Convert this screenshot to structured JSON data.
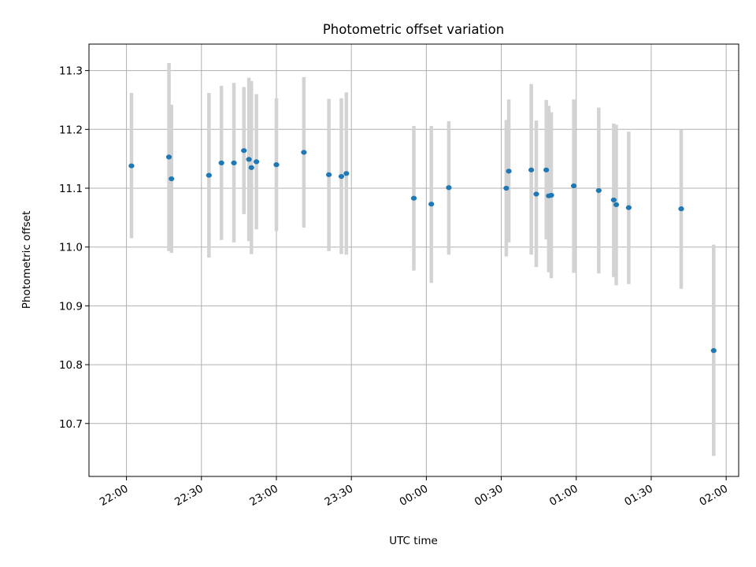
{
  "chart_data": {
    "type": "scatter",
    "title": "Photometric offset variation",
    "xlabel": "UTC time",
    "ylabel": "Photometric offset",
    "x_unit": "UTC time (HH:MM)",
    "xlim": [
      "21:45",
      "02:05"
    ],
    "ylim": [
      10.61,
      11.345
    ],
    "grid": true,
    "error_bar_color": "#d3d3d3",
    "point_color": "#1f77b4",
    "x_ticks": [
      "22:00",
      "22:30",
      "23:00",
      "23:30",
      "00:00",
      "00:30",
      "01:00",
      "01:30",
      "02:00"
    ],
    "y_ticks": [
      "10.7",
      "10.8",
      "10.9",
      "11.0",
      "11.1",
      "11.2",
      "11.3"
    ],
    "points": [
      {
        "t": "22:02",
        "y": 11.138,
        "ylow": 11.015,
        "yhigh": 11.262
      },
      {
        "t": "22:17",
        "y": 11.153,
        "ylow": 10.993,
        "yhigh": 11.313
      },
      {
        "t": "22:18",
        "y": 11.116,
        "ylow": 10.99,
        "yhigh": 11.242
      },
      {
        "t": "22:33",
        "y": 11.122,
        "ylow": 10.982,
        "yhigh": 11.262
      },
      {
        "t": "22:38",
        "y": 11.143,
        "ylow": 11.012,
        "yhigh": 11.274
      },
      {
        "t": "22:43",
        "y": 11.143,
        "ylow": 11.008,
        "yhigh": 11.279
      },
      {
        "t": "22:47",
        "y": 11.164,
        "ylow": 11.056,
        "yhigh": 11.272
      },
      {
        "t": "22:49",
        "y": 11.149,
        "ylow": 11.01,
        "yhigh": 11.288
      },
      {
        "t": "22:50",
        "y": 11.135,
        "ylow": 10.988,
        "yhigh": 11.282
      },
      {
        "t": "22:52",
        "y": 11.145,
        "ylow": 11.03,
        "yhigh": 11.26
      },
      {
        "t": "23:00",
        "y": 11.14,
        "ylow": 11.027,
        "yhigh": 11.253
      },
      {
        "t": "23:11",
        "y": 11.161,
        "ylow": 11.033,
        "yhigh": 11.289
      },
      {
        "t": "23:21",
        "y": 11.123,
        "ylow": 10.993,
        "yhigh": 11.252
      },
      {
        "t": "23:26",
        "y": 11.12,
        "ylow": 10.988,
        "yhigh": 11.253
      },
      {
        "t": "23:28",
        "y": 11.125,
        "ylow": 10.987,
        "yhigh": 11.263
      },
      {
        "t": "23:55",
        "y": 11.083,
        "ylow": 10.96,
        "yhigh": 11.206
      },
      {
        "t": "00:02",
        "y": 11.073,
        "ylow": 10.939,
        "yhigh": 11.206
      },
      {
        "t": "00:09",
        "y": 11.101,
        "ylow": 10.987,
        "yhigh": 11.214
      },
      {
        "t": "00:32",
        "y": 11.1,
        "ylow": 10.984,
        "yhigh": 11.216
      },
      {
        "t": "00:33",
        "y": 11.129,
        "ylow": 11.008,
        "yhigh": 11.251
      },
      {
        "t": "00:42",
        "y": 11.131,
        "ylow": 10.987,
        "yhigh": 11.277
      },
      {
        "t": "00:44",
        "y": 11.09,
        "ylow": 10.966,
        "yhigh": 11.215
      },
      {
        "t": "00:48",
        "y": 11.131,
        "ylow": 11.013,
        "yhigh": 11.25
      },
      {
        "t": "00:49",
        "y": 11.087,
        "ylow": 10.957,
        "yhigh": 11.24
      },
      {
        "t": "00:50",
        "y": 11.088,
        "ylow": 10.947,
        "yhigh": 11.229
      },
      {
        "t": "00:59",
        "y": 11.104,
        "ylow": 10.956,
        "yhigh": 11.251
      },
      {
        "t": "01:09",
        "y": 11.096,
        "ylow": 10.955,
        "yhigh": 11.237
      },
      {
        "t": "01:15",
        "y": 11.08,
        "ylow": 10.949,
        "yhigh": 11.21
      },
      {
        "t": "01:16",
        "y": 11.072,
        "ylow": 10.935,
        "yhigh": 11.208
      },
      {
        "t": "01:21",
        "y": 11.067,
        "ylow": 10.937,
        "yhigh": 11.196
      },
      {
        "t": "01:42",
        "y": 11.065,
        "ylow": 10.929,
        "yhigh": 11.199
      },
      {
        "t": "01:55",
        "y": 10.824,
        "ylow": 10.645,
        "yhigh": 11.004
      }
    ]
  }
}
